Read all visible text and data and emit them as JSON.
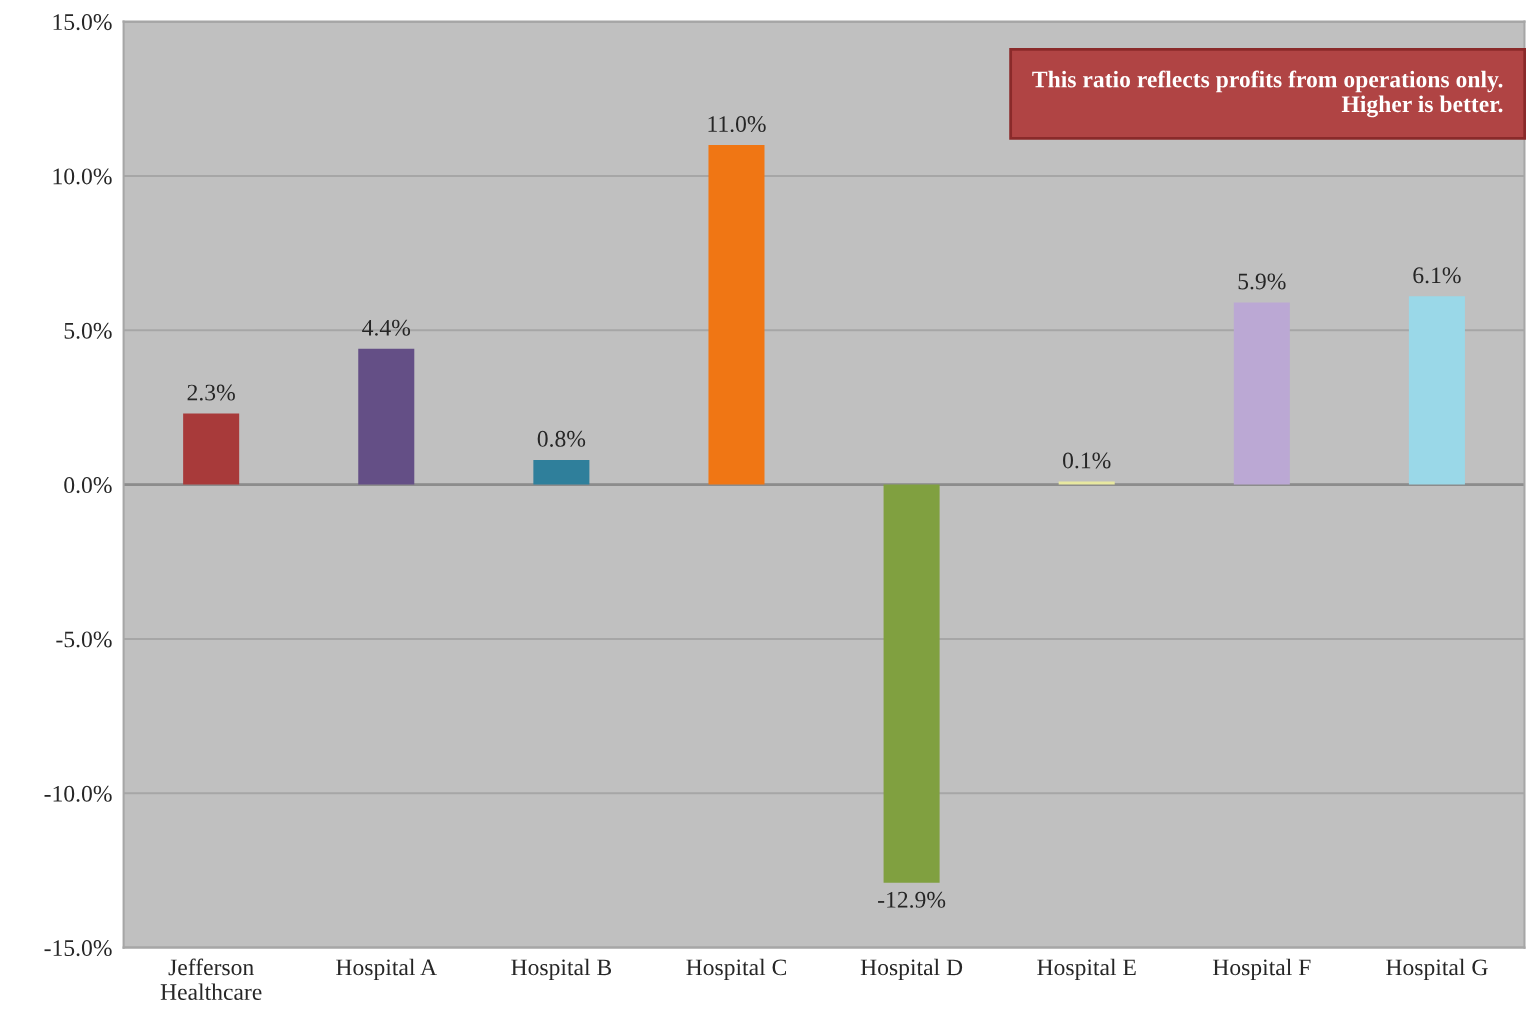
{
  "chart_data": {
    "type": "bar",
    "categories": [
      "Jefferson Healthcare",
      "Hospital A",
      "Hospital B",
      "Hospital C",
      "Hospital D",
      "Hospital E",
      "Hospital F",
      "Hospital G"
    ],
    "values": [
      2.3,
      4.4,
      0.8,
      11.0,
      -12.9,
      0.1,
      5.9,
      6.1
    ],
    "colors": [
      "#a83a3a",
      "#644f86",
      "#2f7f9b",
      "#f07614",
      "#80a040",
      "#e8e8a0",
      "#bba8d4",
      "#9ad8e8"
    ],
    "value_labels": [
      "2.3%",
      "4.4%",
      "0.8%",
      "11.0%",
      "-12.9%",
      "0.1%",
      "5.9%",
      "6.1%"
    ],
    "ylim": [
      -15,
      15
    ],
    "yticks": [
      {
        "value": -15,
        "label": "-15.0%"
      },
      {
        "value": -10,
        "label": "-10.0%"
      },
      {
        "value": -5,
        "label": "-5.0%"
      },
      {
        "value": 0,
        "label": "0.0%"
      },
      {
        "value": 5,
        "label": "5.0%"
      },
      {
        "value": 10,
        "label": "10.0%"
      },
      {
        "value": 15,
        "label": "15.0%"
      }
    ],
    "grid": "y",
    "annotations": [
      "This ratio reflects profits from operations only.\nHigher is better."
    ]
  }
}
